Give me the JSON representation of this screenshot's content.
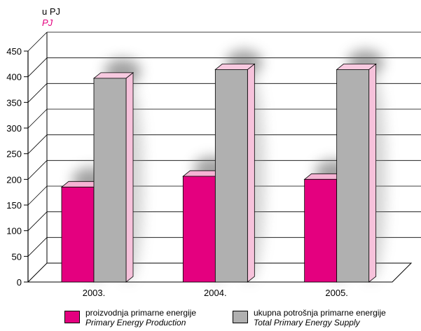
{
  "unit_labels": {
    "primary": "u PJ",
    "secondary": "PJ"
  },
  "chart_data": {
    "type": "bar",
    "categories": [
      "2003.",
      "2004.",
      "2005."
    ],
    "series": [
      {
        "name": "proizvodnja primarne energije / Primary Energy Production",
        "values": [
          185,
          206,
          200
        ],
        "color": "#e4007f"
      },
      {
        "name": "ukupna potrošnja primarne energije / Total Primary Energy Supply",
        "values": [
          397,
          414,
          414
        ],
        "color": "#b0b0b0"
      }
    ],
    "ylim": [
      0,
      450
    ],
    "yticks": [
      0,
      50,
      100,
      150,
      200,
      250,
      300,
      350,
      400,
      450
    ],
    "grid": true,
    "legend_position": "bottom"
  },
  "legend": [
    {
      "label": "proizvodnja primarne energije",
      "label_en": "Primary Energy Production",
      "color": "#e4007f"
    },
    {
      "label": "ukupna potrošnja primarne energije",
      "label_en": "Total Primary Energy Supply",
      "color": "#b0b0b0"
    }
  ]
}
